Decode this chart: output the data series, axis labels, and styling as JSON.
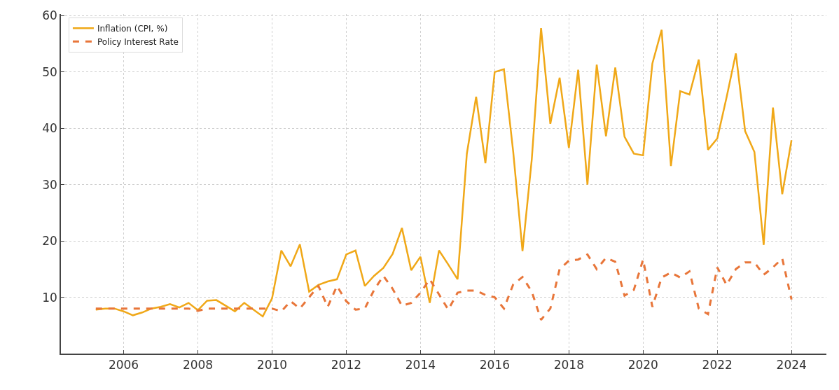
{
  "chart_data": {
    "type": "line",
    "x": [
      2005.25,
      2005.5,
      2005.75,
      2006.0,
      2006.25,
      2006.5,
      2006.75,
      2007.0,
      2007.25,
      2007.5,
      2007.75,
      2008.0,
      2008.25,
      2008.5,
      2008.75,
      2009.0,
      2009.25,
      2009.5,
      2009.75,
      2010.0,
      2010.25,
      2010.5,
      2010.75,
      2011.0,
      2011.25,
      2011.5,
      2011.75,
      2012.0,
      2012.25,
      2012.5,
      2012.75,
      2013.0,
      2013.25,
      2013.5,
      2013.75,
      2014.0,
      2014.25,
      2014.5,
      2014.75,
      2015.0,
      2015.25,
      2015.5,
      2015.75,
      2016.0,
      2016.25,
      2016.5,
      2016.75,
      2017.0,
      2017.25,
      2017.5,
      2017.75,
      2018.0,
      2018.25,
      2018.5,
      2018.75,
      2019.0,
      2019.25,
      2019.5,
      2019.75,
      2020.0,
      2020.25,
      2020.5,
      2020.75,
      2021.0,
      2021.25,
      2021.5,
      2021.75,
      2022.0,
      2022.25,
      2022.5,
      2022.75,
      2023.0,
      2023.25,
      2023.5,
      2023.75,
      2024.0
    ],
    "series": [
      {
        "name": "Inflation (CPI, %)",
        "color": "#f0a818",
        "line_style": "solid",
        "values": [
          7.8,
          8.0,
          8.0,
          7.5,
          6.8,
          7.3,
          8.0,
          8.3,
          8.8,
          8.2,
          9.0,
          7.7,
          9.4,
          9.5,
          8.5,
          7.5,
          9.0,
          7.8,
          6.6,
          9.8,
          18.3,
          15.5,
          19.4,
          11.0,
          12.2,
          12.8,
          13.2,
          17.6,
          18.3,
          12.0,
          13.8,
          15.2,
          17.7,
          22.3,
          14.8,
          17.2,
          9.0,
          18.3,
          15.8,
          13.2,
          35.5,
          45.6,
          33.8,
          50.0,
          50.5,
          35.8,
          18.2,
          34.5,
          57.8,
          40.8,
          49.0,
          36.5,
          50.4,
          30.0,
          51.3,
          38.6,
          50.8,
          38.5,
          35.5,
          35.2,
          51.5,
          57.5,
          33.3,
          46.6,
          46.0,
          52.2,
          36.2,
          38.2,
          45.5,
          53.3,
          39.5,
          35.8,
          19.3,
          43.7,
          28.3,
          37.9
        ]
      },
      {
        "name": "Policy Interest Rate",
        "color": "#e8763a",
        "line_style": "dashed",
        "values": [
          8.0,
          8.0,
          8.0,
          8.0,
          8.0,
          8.0,
          8.0,
          8.0,
          8.0,
          8.0,
          8.0,
          7.6,
          8.0,
          8.0,
          8.0,
          8.0,
          8.0,
          8.0,
          8.0,
          8.0,
          7.5,
          9.3,
          8.0,
          10.0,
          12.0,
          8.3,
          12.0,
          9.3,
          7.8,
          8.0,
          11.3,
          13.8,
          11.5,
          8.5,
          9.0,
          10.8,
          13.2,
          10.5,
          7.8,
          10.8,
          11.2,
          11.2,
          10.4,
          10.0,
          8.0,
          12.3,
          13.6,
          11.0,
          6.0,
          8.0,
          15.0,
          16.5,
          16.7,
          17.6,
          15.0,
          17.0,
          16.3,
          10.3,
          11.3,
          16.7,
          8.3,
          13.5,
          14.4,
          13.5,
          14.6,
          8.0,
          7.0,
          15.3,
          12.2,
          15.0,
          16.2,
          16.2,
          14.0,
          15.3,
          16.9,
          9.6
        ]
      }
    ],
    "xlim": [
      2004.31,
      2024.94
    ],
    "xticks": [
      2006,
      2008,
      2010,
      2012,
      2014,
      2016,
      2018,
      2020,
      2022,
      2024
    ],
    "ylim": [
      0,
      60.3
    ],
    "yticks": [
      {
        "value": 0,
        "label": null
      },
      10,
      20,
      30,
      40,
      50,
      60
    ],
    "grid": true,
    "legend": "top left",
    "marker": "none"
  }
}
